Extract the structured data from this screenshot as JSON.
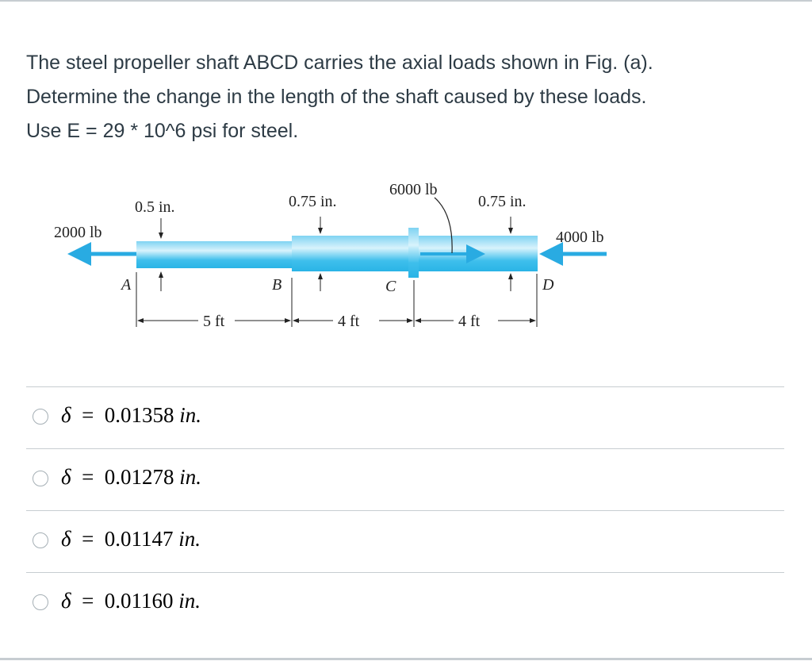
{
  "question": {
    "text_lines": [
      "The steel propeller shaft ABCD carries the axial loads shown in Fig. (a).",
      "Determine the change in the length of the shaft caused by these loads.",
      "Use E = 29 * 10^6 psi for steel."
    ]
  },
  "figure": {
    "load_left": "2000 lb",
    "load_c": "6000 lb",
    "load_right": "4000 lb",
    "diam_ab": "0.5 in.",
    "diam_bc": "0.75 in.",
    "diam_cd": "0.75 in.",
    "point_a": "A",
    "point_b": "B",
    "point_c": "C",
    "point_d": "D",
    "len_ab": "5 ft",
    "len_bc": "4 ft",
    "len_cd": "4 ft",
    "shaft_color": "#5cc8ee",
    "arrow_color": "#29abe2"
  },
  "answers": [
    {
      "symbol": "δ",
      "eq": "=",
      "value": "0.01358",
      "unit": "in."
    },
    {
      "symbol": "δ",
      "eq": "=",
      "value": "0.01278",
      "unit": "in."
    },
    {
      "symbol": "δ",
      "eq": "=",
      "value": "0.01147",
      "unit": "in."
    },
    {
      "symbol": "δ",
      "eq": "=",
      "value": "0.01160",
      "unit": "in."
    }
  ]
}
